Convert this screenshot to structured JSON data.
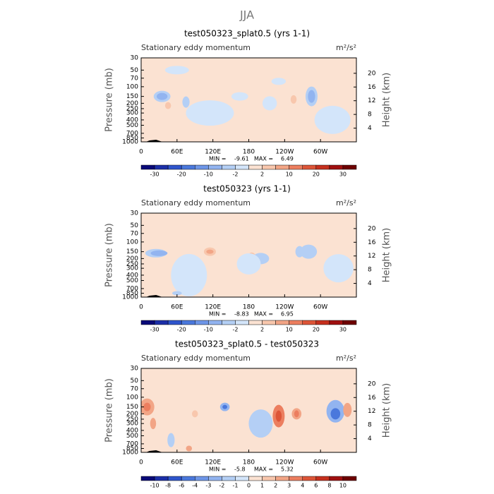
{
  "figure_title": "JJA",
  "chart_data": [
    {
      "type": "contour",
      "title": "test050323_splat0.5 (yrs 1-1)",
      "subtitle": "Stationary eddy momentum",
      "units": "m²/s²",
      "ylabel": "Pressure (mb)",
      "y2label": "Height (km)",
      "xlim": [
        0,
        360
      ],
      "xticks": [
        0,
        {
          "value": 60,
          "label": "60E"
        },
        {
          "value": 120,
          "label": "120E"
        },
        180,
        {
          "value": 240,
          "label": "120W"
        },
        {
          "value": 300,
          "label": "60W"
        }
      ],
      "ylim": [
        1000,
        30
      ],
      "ylog": true,
      "yticks": [
        30,
        50,
        70,
        100,
        150,
        200,
        250,
        300,
        400,
        500,
        700,
        850,
        1000
      ],
      "y2lim": [
        0,
        24.5
      ],
      "y2ticks": [
        4,
        8,
        12,
        16,
        20
      ],
      "min_label": "MIN =",
      "min": -9.61,
      "max_label": "MAX =",
      "max": 6.49,
      "colorbar_colors": [
        "#0a0a78",
        "#1c2fa8",
        "#2f55cc",
        "#4a78dc",
        "#6e96e8",
        "#92b4f0",
        "#b4cff5",
        "#d3e5fa",
        "#fbe2d2",
        "#f8c7ad",
        "#f2a586",
        "#ec7e5f",
        "#dd5538",
        "#c6301e",
        "#a01010",
        "#6e0000"
      ],
      "colorbar_ticks": [
        -30,
        null,
        -20,
        null,
        -10,
        null,
        -2,
        null,
        2,
        null,
        10,
        null,
        20,
        null,
        30
      ]
    },
    {
      "type": "contour",
      "title": "test050323 (yrs 1-1)",
      "subtitle": "Stationary eddy momentum",
      "units": "m²/s²",
      "ylabel": "Pressure (mb)",
      "y2label": "Height (km)",
      "xlim": [
        0,
        360
      ],
      "xticks": [
        0,
        {
          "value": 60,
          "label": "60E"
        },
        {
          "value": 120,
          "label": "120E"
        },
        180,
        {
          "value": 240,
          "label": "120W"
        },
        {
          "value": 300,
          "label": "60W"
        }
      ],
      "ylim": [
        1000,
        30
      ],
      "ylog": true,
      "yticks": [
        30,
        50,
        70,
        100,
        150,
        200,
        250,
        300,
        400,
        500,
        700,
        850,
        1000
      ],
      "y2lim": [
        0,
        24.5
      ],
      "y2ticks": [
        4,
        8,
        12,
        16,
        20
      ],
      "min_label": "MIN =",
      "min": -8.83,
      "max_label": "MAX =",
      "max": 6.95,
      "colorbar_colors": [
        "#0a0a78",
        "#1c2fa8",
        "#2f55cc",
        "#4a78dc",
        "#6e96e8",
        "#92b4f0",
        "#b4cff5",
        "#d3e5fa",
        "#fbe2d2",
        "#f8c7ad",
        "#f2a586",
        "#ec7e5f",
        "#dd5538",
        "#c6301e",
        "#a01010",
        "#6e0000"
      ],
      "colorbar_ticks": [
        -30,
        null,
        -20,
        null,
        -10,
        null,
        -2,
        null,
        2,
        null,
        10,
        null,
        20,
        null,
        30
      ]
    },
    {
      "type": "contour",
      "title": "test050323_splat0.5 - test050323",
      "subtitle": "Stationary eddy momentum",
      "units": "m²/s²",
      "ylabel": "Pressure (mb)",
      "y2label": "Height (km)",
      "xlim": [
        0,
        360
      ],
      "xticks": [
        0,
        {
          "value": 60,
          "label": "60E"
        },
        {
          "value": 120,
          "label": "120E"
        },
        180,
        {
          "value": 240,
          "label": "120W"
        },
        {
          "value": 300,
          "label": "60W"
        }
      ],
      "ylim": [
        1000,
        30
      ],
      "ylog": true,
      "yticks": [
        30,
        50,
        70,
        100,
        150,
        200,
        250,
        300,
        400,
        500,
        700,
        850,
        1000
      ],
      "y2lim": [
        0,
        24.5
      ],
      "y2ticks": [
        4,
        8,
        12,
        16,
        20
      ],
      "min_label": "MIN =",
      "min": -5.8,
      "max_label": "MAX =",
      "max": 5.32,
      "colorbar_colors": [
        "#0a0a78",
        "#1c2fa8",
        "#2f55cc",
        "#4a78dc",
        "#6e96e8",
        "#92b4f0",
        "#b4cff5",
        "#d3e5fa",
        "#fbe2d2",
        "#f8c7ad",
        "#f2a586",
        "#ec7e5f",
        "#dd5538",
        "#c6301e",
        "#a01010",
        "#6e0000"
      ],
      "colorbar_ticks": [
        -10,
        -8,
        -6,
        -4,
        -3,
        -2,
        -1,
        0,
        1,
        2,
        3,
        4,
        6,
        8,
        10
      ]
    }
  ]
}
